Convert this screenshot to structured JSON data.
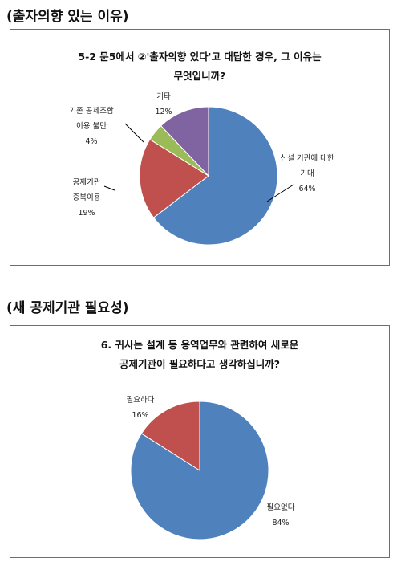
{
  "section1_heading": "(출자의향 있는 이유)",
  "section2_heading": "(새 공제기관 필요성)",
  "chart_data": [
    {
      "type": "pie",
      "title_lines": [
        "5-2 문5에서 ②'출자의향 있다'고 대답한 경우, 그 이유는",
        "무엇입니까?"
      ],
      "slices": [
        {
          "label_lines": [
            "신설 기관에 대한",
            "기대"
          ],
          "pct_text": "64%",
          "value": 64,
          "color": "#4F81BD"
        },
        {
          "label_lines": [
            "공제기관",
            "중복이용"
          ],
          "pct_text": "19%",
          "value": 19,
          "color": "#C0504D"
        },
        {
          "label_lines": [
            "기존 공제조합",
            "이용 불만"
          ],
          "pct_text": "4%",
          "value": 4,
          "color": "#9BBB59"
        },
        {
          "label_lines": [
            "기타"
          ],
          "pct_text": "12%",
          "value": 12,
          "color": "#8064A2"
        }
      ]
    },
    {
      "type": "pie",
      "title_lines": [
        "6. 귀사는 설계 등 용역업무와 관련하여 새로운",
        "공제기관이 필요하다고 생각하십니까?"
      ],
      "slices": [
        {
          "label_lines": [
            "필요없다"
          ],
          "pct_text": "84%",
          "value": 84,
          "color": "#4F81BD"
        },
        {
          "label_lines": [
            "필요하다"
          ],
          "pct_text": "16%",
          "value": 16,
          "color": "#C0504D"
        }
      ]
    }
  ]
}
